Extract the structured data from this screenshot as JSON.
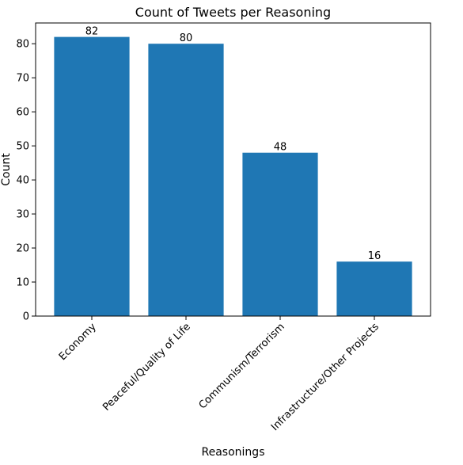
{
  "chart_data": {
    "type": "bar",
    "title": "Count of Tweets per Reasoning",
    "xlabel": "Reasonings",
    "ylabel": "Count",
    "categories": [
      "Economy",
      "Peaceful/Quality of Life",
      "Communism/Terrorism",
      "Infrastructure/Other Projects"
    ],
    "values": [
      82,
      80,
      48,
      16
    ],
    "data_labels": [
      "82",
      "80",
      "48",
      "16"
    ],
    "ylim": [
      0,
      86.1
    ],
    "yticks": [
      0,
      10,
      20,
      30,
      40,
      50,
      60,
      70,
      80
    ],
    "ytick_labels": [
      "0",
      "10",
      "20",
      "30",
      "40",
      "50",
      "60",
      "70",
      "80"
    ],
    "bar_color": "#1f77b4",
    "grid": false,
    "legend": "none"
  }
}
